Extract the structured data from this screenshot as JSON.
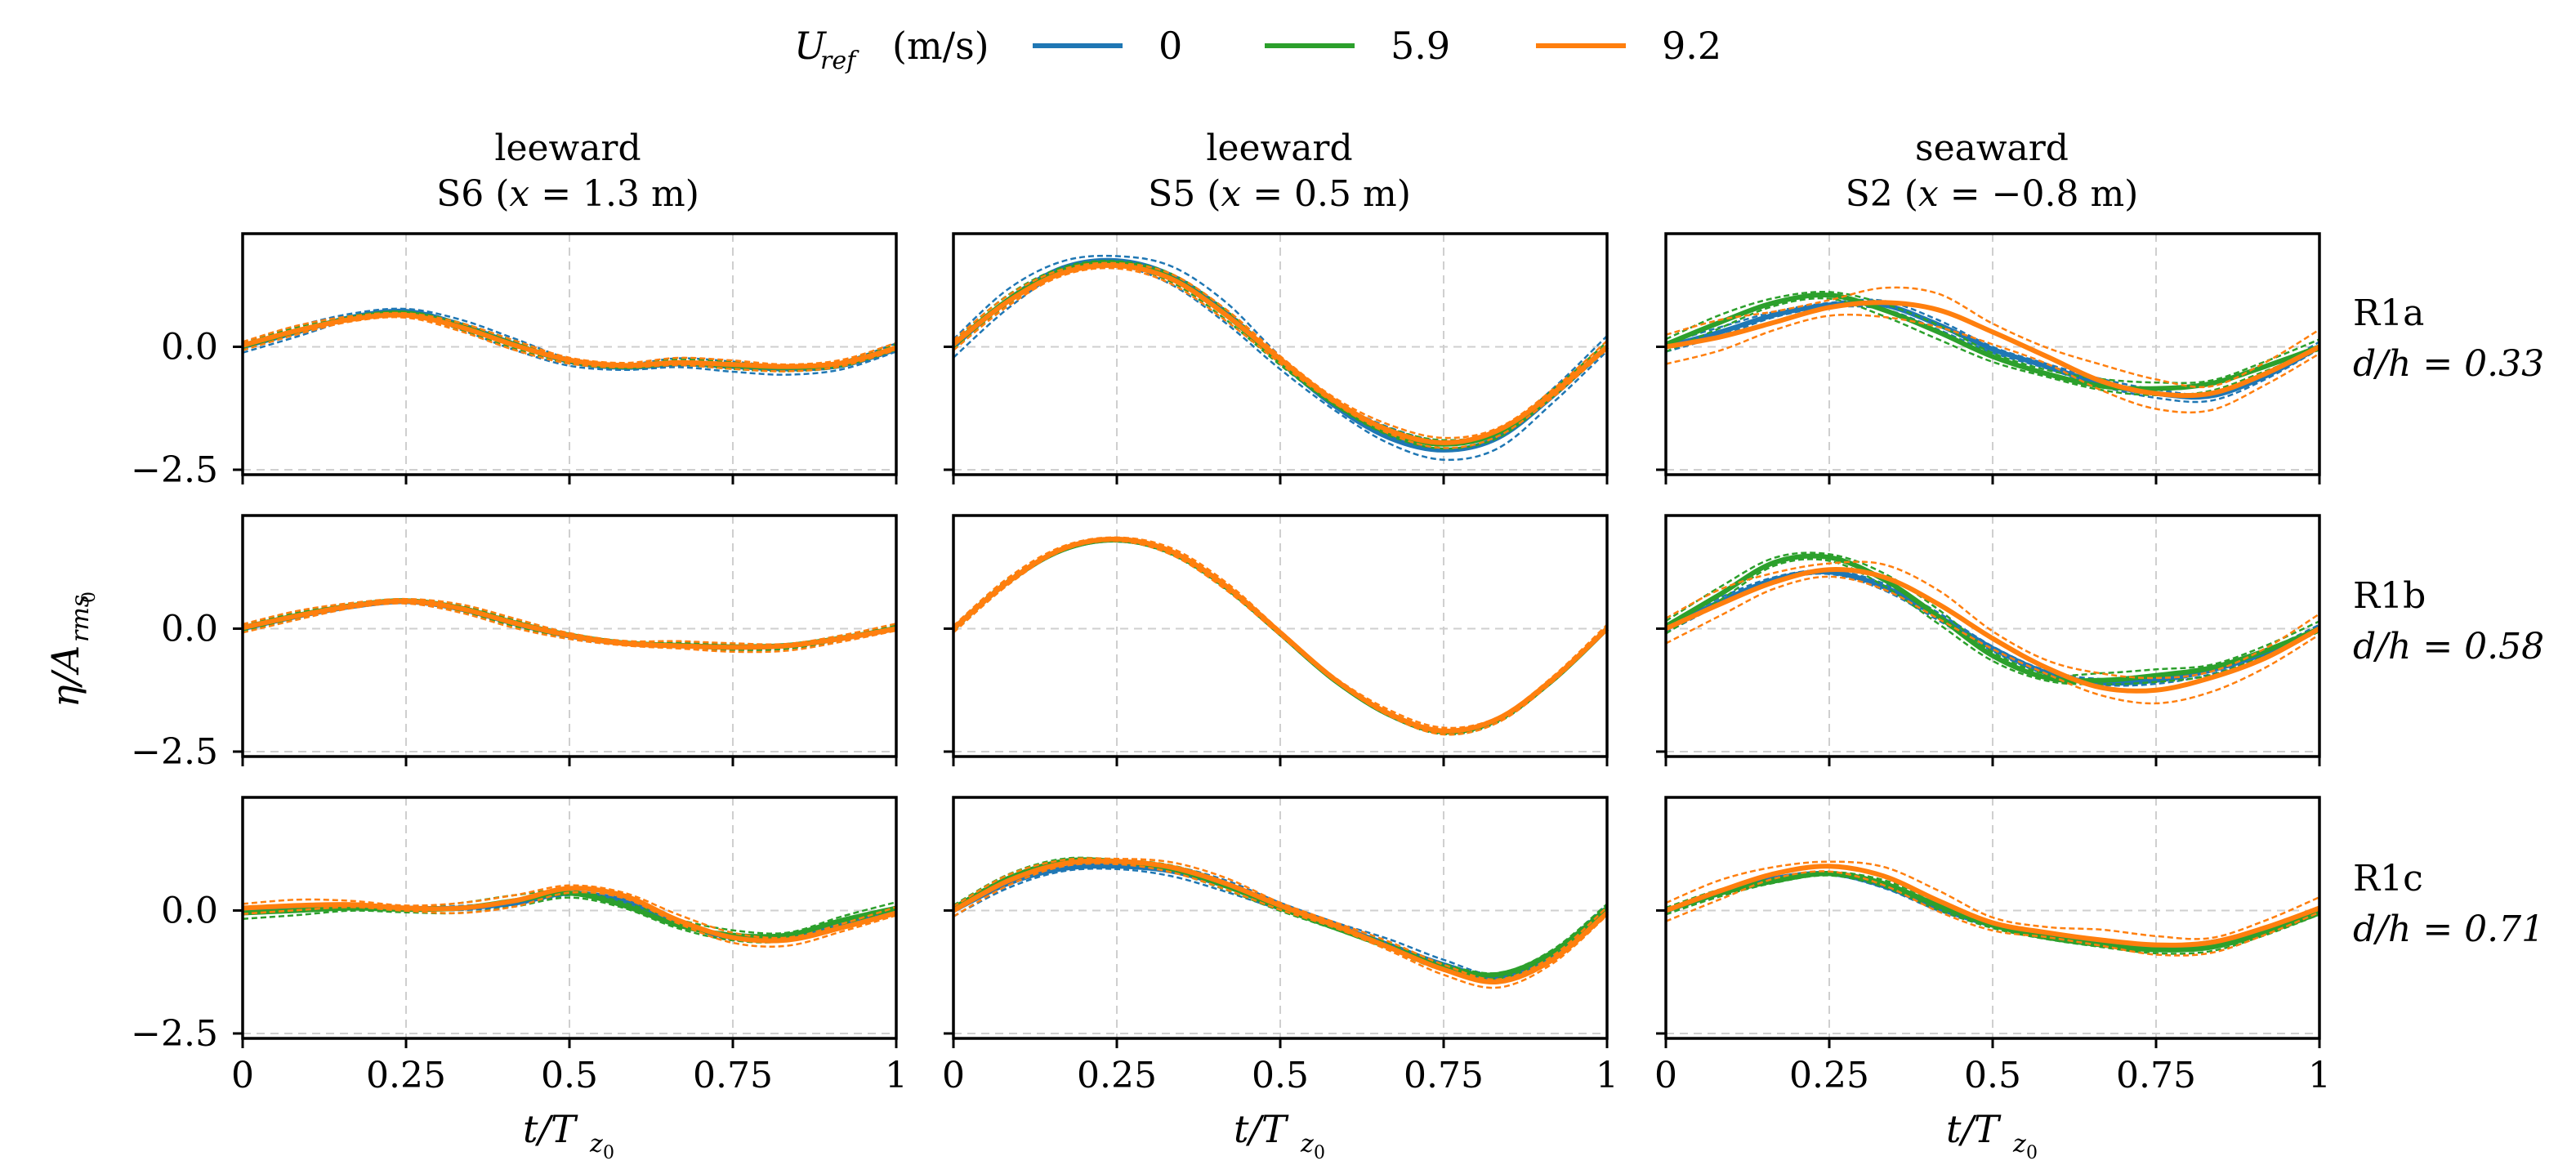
{
  "legend": {
    "title_symbol": "U",
    "title_subscript": "ref",
    "title_units": "(m/s)",
    "entries": [
      {
        "label": "0",
        "color": "#1f77b4"
      },
      {
        "label": "5.9",
        "color": "#2ca02c"
      },
      {
        "label": "9.2",
        "color": "#ff7f0e"
      }
    ]
  },
  "ylabel": {
    "symbol": "η/A",
    "subscript": "rms",
    "subsub": "0"
  },
  "xlabel": {
    "symbol": "t/T",
    "subscript": "z",
    "subsub": "0"
  },
  "columns": [
    {
      "side": "leeward",
      "sensor": "S6 (",
      "pos": "x",
      "val": " = 1.3 m)"
    },
    {
      "side": "leeward",
      "sensor": "S5 (",
      "pos": "x",
      "val": " = 0.5 m)"
    },
    {
      "side": "seaward",
      "sensor": "S2 (",
      "pos": "x",
      "val": " = −0.8 m)"
    }
  ],
  "rows": [
    {
      "name": "R1a",
      "dh": "d/h = 0.33"
    },
    {
      "name": "R1b",
      "dh": "d/h = 0.58"
    },
    {
      "name": "R1c",
      "dh": "d/h = 0.71"
    }
  ],
  "chart_data": {
    "type": "line",
    "x_ticks": [
      "0",
      "0.25",
      "0.5",
      "0.75",
      "1"
    ],
    "y_ticks": [
      "0.0",
      "−2.5"
    ],
    "xlim": [
      0,
      1
    ],
    "ylim": [
      -2.6,
      2.3
    ],
    "x": [
      0,
      0.0833,
      0.1667,
      0.25,
      0.3333,
      0.4167,
      0.5,
      0.5833,
      0.6667,
      0.75,
      0.8333,
      0.9167,
      1
    ],
    "note": "Each panel: mean curve per U_ref (solid) plus upper/lower spread (dashed).",
    "panels": [
      {
        "row": "R1a",
        "col": "S6",
        "series": [
          {
            "name": "0",
            "mean": [
              0,
              0.3,
              0.6,
              0.72,
              0.45,
              0.05,
              -0.3,
              -0.42,
              -0.35,
              -0.4,
              -0.45,
              -0.38,
              -0.05
            ],
            "spread": 0.12
          },
          {
            "name": "5.9",
            "mean": [
              0.02,
              0.32,
              0.58,
              0.68,
              0.42,
              0.04,
              -0.28,
              -0.4,
              -0.33,
              -0.38,
              -0.42,
              -0.35,
              -0.03
            ],
            "spread": 0.08
          },
          {
            "name": "9.2",
            "mean": [
              0.03,
              0.33,
              0.56,
              0.64,
              0.4,
              0.03,
              -0.27,
              -0.38,
              -0.32,
              -0.36,
              -0.4,
              -0.33,
              -0.02
            ],
            "spread": 0.1
          }
        ]
      },
      {
        "row": "R1a",
        "col": "S5",
        "series": [
          {
            "name": "0",
            "mean": [
              0,
              0.95,
              1.6,
              1.75,
              1.45,
              0.7,
              -0.3,
              -1.2,
              -1.85,
              -2.1,
              -1.85,
              -1.0,
              0
            ],
            "spread": 0.22
          },
          {
            "name": "5.9",
            "mean": [
              0.05,
              0.95,
              1.55,
              1.7,
              1.4,
              0.65,
              -0.3,
              -1.15,
              -1.75,
              -1.98,
              -1.75,
              -0.95,
              0
            ],
            "spread": 0.1
          },
          {
            "name": "9.2",
            "mean": [
              0.05,
              0.92,
              1.5,
              1.65,
              1.38,
              0.65,
              -0.25,
              -1.1,
              -1.7,
              -1.95,
              -1.7,
              -0.95,
              0
            ],
            "spread": 0.12
          }
        ]
      },
      {
        "row": "R1a",
        "col": "S2",
        "series": [
          {
            "name": "0",
            "mean": [
              0,
              0.3,
              0.65,
              0.85,
              0.85,
              0.45,
              -0.05,
              -0.4,
              -0.75,
              -0.95,
              -1.0,
              -0.6,
              0
            ],
            "spread": 0.1
          },
          {
            "name": "5.9",
            "mean": [
              0.05,
              0.5,
              0.9,
              1.05,
              0.75,
              0.3,
              -0.2,
              -0.55,
              -0.8,
              -0.85,
              -0.75,
              -0.4,
              0
            ],
            "spread": 0.15
          },
          {
            "name": "9.2",
            "mean": [
              0,
              0.2,
              0.5,
              0.8,
              0.9,
              0.75,
              0.3,
              -0.2,
              -0.7,
              -0.95,
              -0.95,
              -0.55,
              0
            ],
            "spread": 0.35
          }
        ]
      },
      {
        "row": "R1b",
        "col": "S6",
        "series": [
          {
            "name": "0",
            "mean": [
              0,
              0.25,
              0.45,
              0.55,
              0.4,
              0.1,
              -0.15,
              -0.3,
              -0.35,
              -0.38,
              -0.35,
              -0.2,
              0
            ],
            "spread": 0.05
          },
          {
            "name": "5.9",
            "mean": [
              0.02,
              0.27,
              0.47,
              0.57,
              0.42,
              0.12,
              -0.13,
              -0.29,
              -0.34,
              -0.37,
              -0.34,
              -0.19,
              0.01
            ],
            "spread": 0.07
          },
          {
            "name": "9.2",
            "mean": [
              0.02,
              0.26,
              0.46,
              0.56,
              0.41,
              0.11,
              -0.14,
              -0.3,
              -0.35,
              -0.38,
              -0.35,
              -0.2,
              0
            ],
            "spread": 0.1
          }
        ]
      },
      {
        "row": "R1b",
        "col": "S5",
        "series": [
          {
            "name": "0",
            "mean": [
              0,
              0.95,
              1.6,
              1.8,
              1.55,
              0.85,
              -0.1,
              -1.05,
              -1.75,
              -2.1,
              -1.85,
              -1.05,
              0
            ],
            "spread": 0.05
          },
          {
            "name": "5.9",
            "mean": [
              0,
              0.95,
              1.6,
              1.8,
              1.55,
              0.85,
              -0.1,
              -1.05,
              -1.75,
              -2.1,
              -1.85,
              -1.05,
              0
            ],
            "spread": 0.05
          },
          {
            "name": "9.2",
            "mean": [
              0,
              0.95,
              1.62,
              1.82,
              1.57,
              0.87,
              -0.08,
              -1.03,
              -1.73,
              -2.08,
              -1.83,
              -1.03,
              0
            ],
            "spread": 0.08
          }
        ]
      },
      {
        "row": "R1b",
        "col": "S2",
        "series": [
          {
            "name": "0",
            "mean": [
              0,
              0.55,
              1.0,
              1.15,
              0.85,
              0.25,
              -0.4,
              -0.9,
              -1.1,
              -1.05,
              -0.85,
              -0.5,
              0
            ],
            "spread": 0.08
          },
          {
            "name": "5.9",
            "mean": [
              0.05,
              0.7,
              1.35,
              1.45,
              1.0,
              0.25,
              -0.55,
              -1.0,
              -1.05,
              -0.95,
              -0.8,
              -0.45,
              0
            ],
            "spread": 0.15
          },
          {
            "name": "9.2",
            "mean": [
              0,
              0.5,
              0.95,
              1.2,
              1.05,
              0.5,
              -0.2,
              -0.8,
              -1.2,
              -1.25,
              -1.0,
              -0.6,
              0
            ],
            "spread": 0.3
          }
        ]
      },
      {
        "row": "R1c",
        "col": "S6",
        "series": [
          {
            "name": "0",
            "mean": [
              0,
              0.05,
              0.1,
              0.05,
              0.05,
              0.15,
              0.35,
              0.2,
              -0.25,
              -0.55,
              -0.55,
              -0.3,
              0
            ],
            "spread": 0.05
          },
          {
            "name": "5.9",
            "mean": [
              -0.05,
              0.0,
              0.05,
              0.02,
              0.05,
              0.2,
              0.35,
              0.1,
              -0.3,
              -0.5,
              -0.5,
              -0.2,
              0.05
            ],
            "spread": 0.12
          },
          {
            "name": "9.2",
            "mean": [
              0.05,
              0.1,
              0.12,
              0.05,
              0.05,
              0.2,
              0.45,
              0.3,
              -0.2,
              -0.55,
              -0.6,
              -0.35,
              -0.05
            ],
            "spread": 0.12
          }
        ]
      },
      {
        "row": "R1c",
        "col": "S5",
        "series": [
          {
            "name": "0",
            "mean": [
              0,
              0.55,
              0.85,
              0.9,
              0.8,
              0.5,
              0.1,
              -0.3,
              -0.7,
              -1.1,
              -1.35,
              -0.9,
              0
            ],
            "spread": 0.12
          },
          {
            "name": "5.9",
            "mean": [
              0.05,
              0.65,
              1.0,
              1.0,
              0.85,
              0.5,
              0.05,
              -0.35,
              -0.75,
              -1.15,
              -1.3,
              -0.85,
              0.05
            ],
            "spread": 0.08
          },
          {
            "name": "9.2",
            "mean": [
              0,
              0.6,
              0.95,
              1.0,
              0.88,
              0.55,
              0.1,
              -0.3,
              -0.75,
              -1.2,
              -1.45,
              -1.0,
              -0.05
            ],
            "spread": 0.12
          }
        ]
      },
      {
        "row": "R1c",
        "col": "S2",
        "series": [
          {
            "name": "0",
            "mean": [
              0,
              0.35,
              0.65,
              0.75,
              0.5,
              0.05,
              -0.3,
              -0.5,
              -0.65,
              -0.75,
              -0.65,
              -0.4,
              0
            ],
            "spread": 0.05
          },
          {
            "name": "5.9",
            "mean": [
              0,
              0.35,
              0.6,
              0.75,
              0.55,
              0.1,
              -0.3,
              -0.55,
              -0.7,
              -0.8,
              -0.75,
              -0.45,
              -0.05
            ],
            "spread": 0.08
          },
          {
            "name": "9.2",
            "mean": [
              0,
              0.4,
              0.75,
              0.9,
              0.7,
              0.2,
              -0.25,
              -0.45,
              -0.6,
              -0.7,
              -0.65,
              -0.35,
              0.05
            ],
            "spread": 0.22
          }
        ]
      }
    ]
  }
}
